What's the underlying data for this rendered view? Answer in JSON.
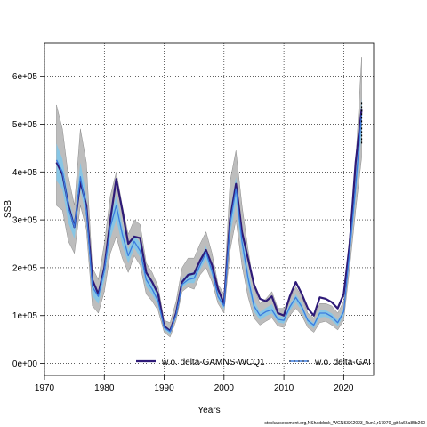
{
  "chart_data": {
    "type": "line",
    "xlabel": "Years",
    "ylabel": "SSB",
    "xlim": [
      1970,
      2025
    ],
    "ylim": [
      -25000,
      670000
    ],
    "xticks": [
      1970,
      1980,
      1990,
      2000,
      2010,
      2020
    ],
    "yticks": [
      0,
      100000,
      200000,
      300000,
      400000,
      500000,
      600000
    ],
    "ytick_labels": [
      "0e+00",
      "1e+05",
      "2e+05",
      "3e+05",
      "4e+05",
      "5e+05",
      "6e+05"
    ],
    "grid": true,
    "legend_position": "bottom",
    "credit": "stockassessment.org,NShaddock_WGNSSK2023_Run1,r17970_git4a66a85b260",
    "colors": {
      "series1": "#2e1a78",
      "series2": "#3a7be0",
      "series2_band": "#7fc8ec",
      "band": "#bdbdbd",
      "band_edge": "#8c8c8c",
      "final_point": "#000000"
    },
    "x": [
      1972,
      1973,
      1974,
      1975,
      1976,
      1977,
      1978,
      1979,
      1980,
      1981,
      1982,
      1983,
      1984,
      1985,
      1986,
      1987,
      1988,
      1989,
      1990,
      1991,
      1992,
      1993,
      1994,
      1995,
      1996,
      1997,
      1998,
      1999,
      2000,
      2001,
      2002,
      2003,
      2004,
      2005,
      2006,
      2007,
      2008,
      2009,
      2010,
      2011,
      2012,
      2013,
      2014,
      2015,
      2016,
      2017,
      2018,
      2019,
      2020,
      2021,
      2022,
      2023
    ],
    "band_low": [
      330000,
      320000,
      255000,
      230000,
      330000,
      280000,
      120000,
      105000,
      150000,
      230000,
      265000,
      220000,
      190000,
      225000,
      205000,
      145000,
      130000,
      110000,
      65000,
      55000,
      90000,
      150000,
      160000,
      155000,
      185000,
      200000,
      170000,
      125000,
      105000,
      235000,
      300000,
      205000,
      140000,
      95000,
      80000,
      88000,
      95000,
      78000,
      75000,
      100000,
      115000,
      100000,
      75000,
      65000,
      85000,
      88000,
      80000,
      70000,
      90000,
      200000,
      320000,
      430000
    ],
    "band_high": [
      540000,
      490000,
      390000,
      330000,
      490000,
      420000,
      200000,
      175000,
      250000,
      350000,
      400000,
      330000,
      270000,
      300000,
      290000,
      210000,
      190000,
      160000,
      90000,
      85000,
      130000,
      200000,
      220000,
      220000,
      250000,
      275000,
      230000,
      165000,
      145000,
      380000,
      445000,
      330000,
      240000,
      160000,
      125000,
      135000,
      150000,
      115000,
      115000,
      135000,
      160000,
      140000,
      105000,
      95000,
      125000,
      125000,
      120000,
      105000,
      130000,
      270000,
      420000,
      640000
    ],
    "series": [
      {
        "name": "w.o. delta-GAMNS-WCQ1",
        "values": [
          420000,
          395000,
          330000,
          285000,
          380000,
          330000,
          175000,
          145000,
          200000,
          300000,
          385000,
          320000,
          250000,
          265000,
          262000,
          190000,
          170000,
          145000,
          78000,
          68000,
          105000,
          170000,
          185000,
          188000,
          215000,
          237000,
          205000,
          155000,
          125000,
          300000,
          375000,
          275000,
          220000,
          165000,
          135000,
          130000,
          140000,
          105000,
          100000,
          140000,
          170000,
          145000,
          115000,
          100000,
          138000,
          135000,
          128000,
          115000,
          145000,
          250000,
          420000,
          530000
        ]
      },
      {
        "name": "w.o. delta-GAI",
        "values": [
          425000,
          400000,
          325000,
          285000,
          390000,
          320000,
          160000,
          140000,
          195000,
          285000,
          330000,
          270000,
          225000,
          255000,
          235000,
          175000,
          155000,
          130000,
          75000,
          66000,
          102000,
          165000,
          175000,
          178000,
          205000,
          232000,
          192000,
          140000,
          120000,
          290000,
          365000,
          255000,
          180000,
          120000,
          100000,
          108000,
          112000,
          92000,
          90000,
          118000,
          138000,
          118000,
          90000,
          80000,
          105000,
          105000,
          98000,
          85000,
          108000,
          235000,
          370000,
          520000
        ]
      }
    ]
  }
}
